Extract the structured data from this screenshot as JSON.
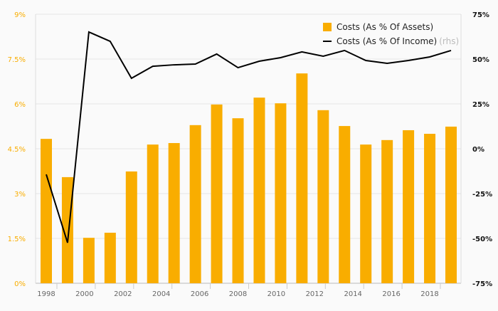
{
  "chart_data": {
    "type": "bar+line",
    "title": "",
    "categories": [
      "1998",
      "1999",
      "2000",
      "2001",
      "2002",
      "2003",
      "2004",
      "2005",
      "2006",
      "2007",
      "2008",
      "2009",
      "2010",
      "2011",
      "2012",
      "2013",
      "2014",
      "2015",
      "2016",
      "2017"
    ],
    "x_tick_labels": [
      "1998",
      "2000",
      "2002",
      "2004",
      "2006",
      "2008",
      "2010",
      "2012",
      "2014",
      "2016",
      "2018"
    ],
    "left_axis": {
      "ticks": [
        "0%",
        "1.5%",
        "3%",
        "4.5%",
        "6%",
        "7.5%",
        "9%"
      ],
      "ylim": [
        0,
        9
      ]
    },
    "right_axis": {
      "ticks": [
        "-75%",
        "-50%",
        "-25%",
        "0%",
        "25%",
        "50%",
        "75%"
      ],
      "ylim": [
        -75,
        75
      ]
    },
    "series": [
      {
        "name": "Costs (As % Of Assets)",
        "type": "bar",
        "axis": "left",
        "color": "#f9ad00",
        "values": [
          4.83,
          3.55,
          1.52,
          1.69,
          3.74,
          4.64,
          4.69,
          5.29,
          5.98,
          5.52,
          6.21,
          6.02,
          7.02,
          5.79,
          5.26,
          4.64,
          4.79,
          5.12,
          5.0,
          5.24
        ]
      },
      {
        "name": "Costs (As % Of Income)",
        "suffix": "(rhs)",
        "type": "line",
        "axis": "right",
        "color": "#000000",
        "values": [
          -14.3,
          -52.4,
          65.1,
          59.9,
          39.3,
          46.0,
          46.8,
          47.2,
          52.8,
          45.2,
          48.8,
          50.8,
          54.0,
          51.6,
          54.8,
          49.2,
          47.6,
          49.2,
          51.2,
          54.8
        ]
      }
    ],
    "legend": "top-right",
    "grid": true
  }
}
